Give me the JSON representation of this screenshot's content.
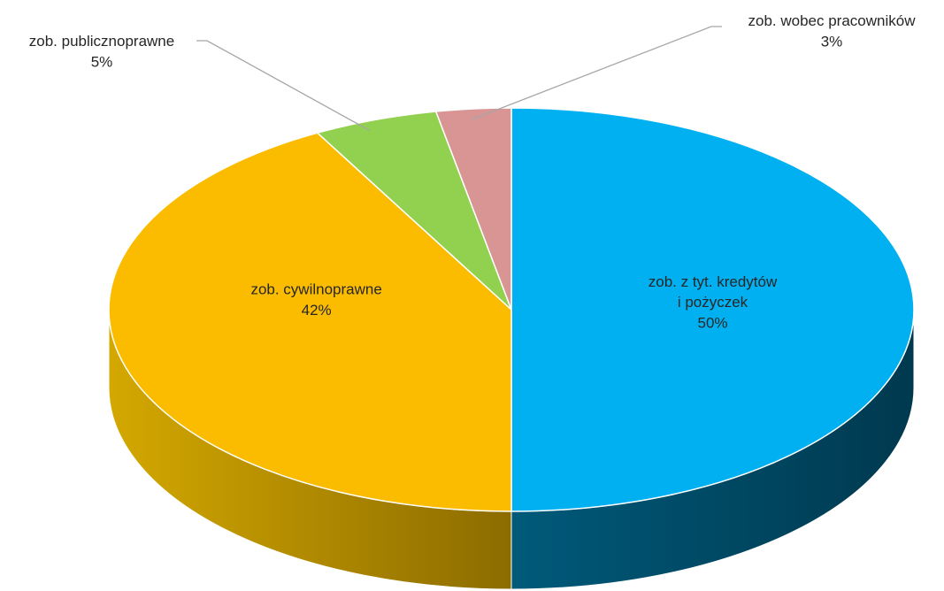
{
  "chart_data": {
    "type": "pie",
    "categories": [
      "zob. z tyt. kredytów\ni pożyczek",
      "zob. cywilnoprawne",
      "zob. publicznoprawne",
      "zob. wobec pracowników"
    ],
    "values": [
      50,
      42,
      5,
      3
    ],
    "value_labels": [
      "50%",
      "42%",
      "5%",
      "3%"
    ],
    "colors": [
      "#00b0f0",
      "#fbbc00",
      "#92d050",
      "#d99594"
    ],
    "side_colors": [
      [
        "#005a7a",
        "#00394f"
      ],
      [
        "#d4a800",
        "#8c6c00"
      ],
      [
        "#6f9e3c",
        "#56792e"
      ],
      [
        "#a87170",
        "#855857"
      ]
    ],
    "start_angle": 0,
    "direction": "clockwise",
    "3d": true
  }
}
